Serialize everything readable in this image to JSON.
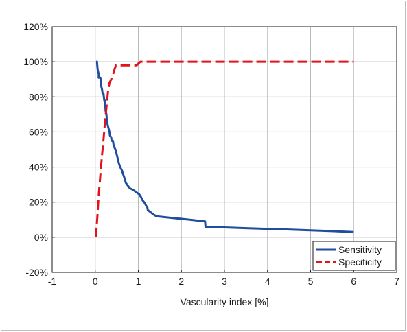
{
  "chart_data": {
    "type": "line",
    "title": "",
    "xlabel": "Vascularity index [%]",
    "ylabel": "",
    "xlim": [
      -1,
      7
    ],
    "ylim": [
      -20,
      120
    ],
    "x_ticks": [
      -1,
      0,
      1,
      2,
      3,
      4,
      5,
      6,
      7
    ],
    "x_tick_labels": [
      "-1",
      "0",
      "1",
      "2",
      "3",
      "4",
      "5",
      "6",
      "7"
    ],
    "y_ticks": [
      -20,
      0,
      20,
      40,
      60,
      80,
      100,
      120
    ],
    "y_tick_labels": [
      "-20%",
      "0%",
      "20%",
      "40%",
      "60%",
      "80%",
      "100%",
      "120%"
    ],
    "grid": true,
    "legend_position": "bottom-right",
    "series": [
      {
        "name": "Sensitivity",
        "color": "#1f4e9c",
        "style": "solid",
        "points": [
          [
            0.02,
            100
          ],
          [
            0.04,
            100
          ],
          [
            0.05,
            97
          ],
          [
            0.06,
            95
          ],
          [
            0.08,
            93
          ],
          [
            0.08,
            91
          ],
          [
            0.12,
            91
          ],
          [
            0.13,
            89
          ],
          [
            0.14,
            86
          ],
          [
            0.16,
            84
          ],
          [
            0.17,
            82
          ],
          [
            0.19,
            82
          ],
          [
            0.2,
            80
          ],
          [
            0.21,
            78
          ],
          [
            0.22,
            78
          ],
          [
            0.23,
            76
          ],
          [
            0.24,
            72
          ],
          [
            0.26,
            70
          ],
          [
            0.27,
            66
          ],
          [
            0.29,
            64
          ],
          [
            0.31,
            62
          ],
          [
            0.33,
            60
          ],
          [
            0.34,
            58
          ],
          [
            0.37,
            57
          ],
          [
            0.38,
            55
          ],
          [
            0.41,
            55
          ],
          [
            0.43,
            52
          ],
          [
            0.47,
            50
          ],
          [
            0.49,
            48
          ],
          [
            0.52,
            45
          ],
          [
            0.55,
            42
          ],
          [
            0.58,
            40
          ],
          [
            0.62,
            38
          ],
          [
            0.66,
            35
          ],
          [
            0.69,
            33
          ],
          [
            0.71,
            31
          ],
          [
            0.74,
            30
          ],
          [
            0.8,
            28
          ],
          [
            0.88,
            27
          ],
          [
            0.96,
            25.5
          ],
          [
            1.02,
            24.5
          ],
          [
            1.06,
            23
          ],
          [
            1.1,
            21
          ],
          [
            1.15,
            19.5
          ],
          [
            1.18,
            18
          ],
          [
            1.21,
            17
          ],
          [
            1.22,
            15.5
          ],
          [
            1.3,
            14
          ],
          [
            1.35,
            13
          ],
          [
            1.42,
            12
          ],
          [
            1.8,
            11
          ],
          [
            2.2,
            10
          ],
          [
            2.55,
            9
          ],
          [
            2.56,
            6
          ],
          [
            3.5,
            5.2
          ],
          [
            4.5,
            4.4
          ],
          [
            5.5,
            3.5
          ],
          [
            6.0,
            3
          ]
        ]
      },
      {
        "name": "Specificity",
        "color": "#e0141c",
        "style": "dashed",
        "points": [
          [
            0.02,
            0
          ],
          [
            0.03,
            5
          ],
          [
            0.05,
            12
          ],
          [
            0.07,
            20
          ],
          [
            0.09,
            27
          ],
          [
            0.11,
            33
          ],
          [
            0.13,
            39
          ],
          [
            0.15,
            45
          ],
          [
            0.17,
            50
          ],
          [
            0.2,
            58
          ],
          [
            0.22,
            64
          ],
          [
            0.24,
            69
          ],
          [
            0.26,
            74
          ],
          [
            0.28,
            79
          ],
          [
            0.3,
            84
          ],
          [
            0.33,
            88
          ],
          [
            0.37,
            90
          ],
          [
            0.4,
            92
          ],
          [
            0.43,
            94
          ],
          [
            0.45,
            96
          ],
          [
            0.48,
            98
          ],
          [
            0.7,
            98
          ],
          [
            0.96,
            98
          ],
          [
            1.0,
            99
          ],
          [
            1.05,
            100
          ],
          [
            2.0,
            100
          ],
          [
            3.0,
            100
          ],
          [
            4.0,
            100
          ],
          [
            5.0,
            100
          ],
          [
            6.0,
            100
          ]
        ]
      }
    ]
  }
}
